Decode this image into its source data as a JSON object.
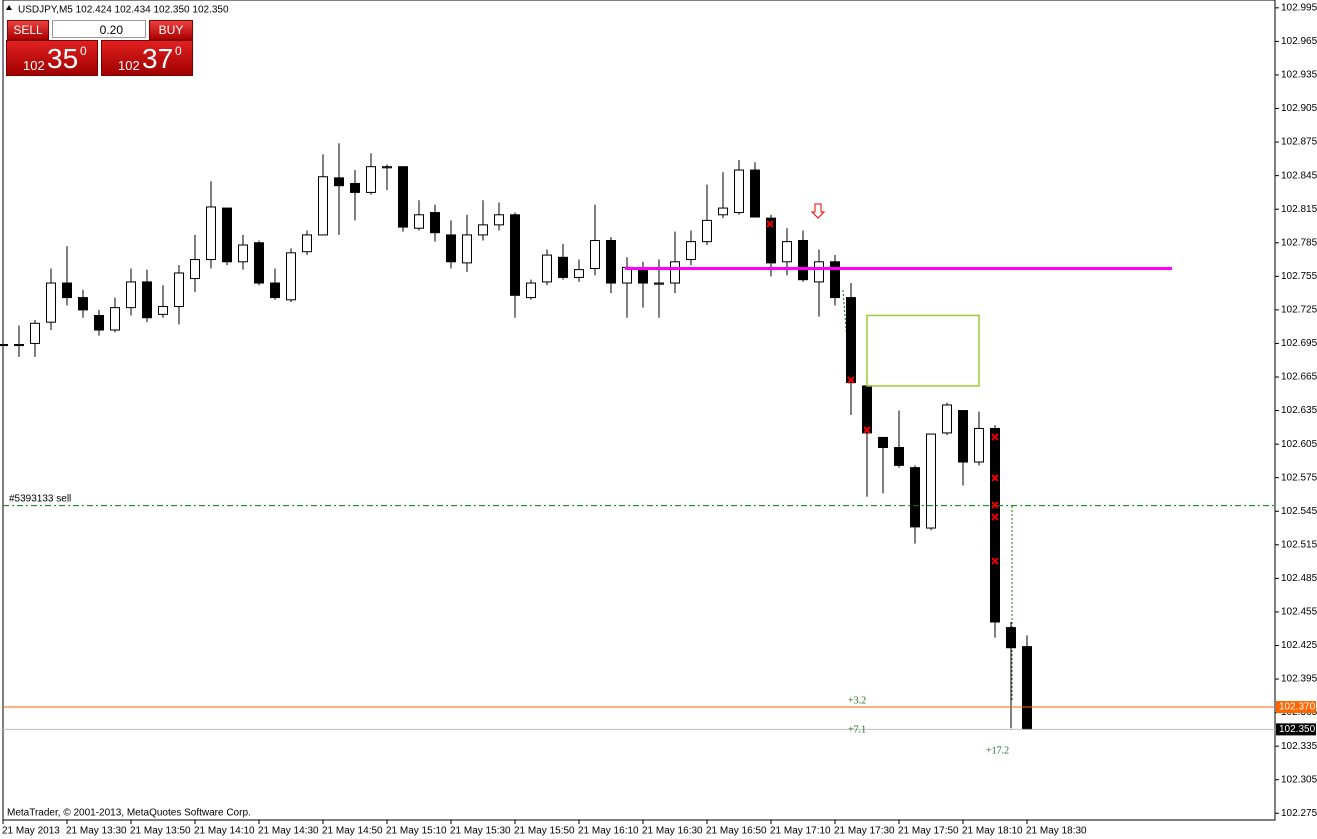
{
  "chart_data": {
    "type": "candlestick",
    "title": "USDJPY,M5  102.424 102.434 102.350 102.350",
    "footer": "MetaTrader, © 2001-2013, MetaQuotes Software Corp.",
    "categories": [
      "21 May 2013",
      null,
      null,
      null,
      "21 May 13:30",
      null,
      null,
      null,
      "21 May 13:50",
      null,
      null,
      null,
      "21 May 14:10",
      null,
      null,
      null,
      "21 May 14:30",
      null,
      null,
      null,
      "21 May 14:50",
      null,
      null,
      null,
      "21 May 15:10",
      null,
      null,
      null,
      "21 May 15:30",
      null,
      null,
      null,
      "21 May 15:50",
      null,
      null,
      null,
      "21 May 16:10",
      null,
      null,
      null,
      "21 May 16:30",
      null,
      null,
      null,
      "21 May 16:50",
      null,
      null,
      null,
      "21 May 17:10",
      null,
      null,
      null,
      "21 May 17:30",
      null,
      null,
      null,
      "21 May 17:50",
      null,
      null,
      null,
      "21 May 18:10",
      null,
      null,
      null,
      "21 May 18:30"
    ],
    "open": [
      102.694,
      102.694,
      102.695,
      102.714,
      102.749,
      102.736,
      102.72,
      102.707,
      102.727,
      102.75,
      102.721,
      102.728,
      102.753,
      102.77,
      102.816,
      102.768,
      102.785,
      102.749,
      102.734,
      102.777,
      102.792,
      102.843,
      102.838,
      102.83,
      102.852,
      102.853,
      102.798,
      102.812,
      102.792,
      102.767,
      102.792,
      102.801,
      102.81,
      102.736,
      102.75,
      102.772,
      102.754,
      102.762,
      102.787,
      102.749,
      102.761,
      102.748,
      102.749,
      102.77,
      102.786,
      102.81,
      102.812,
      102.85,
      102.807,
      102.768,
      102.787,
      102.75,
      102.768,
      102.736,
      102.657,
      102.611,
      102.602,
      102.584,
      102.53,
      102.615,
      102.635,
      102.589,
      102.619,
      102.441,
      102.424
    ],
    "high": [
      102.716,
      102.711,
      102.716,
      102.762,
      102.782,
      102.743,
      102.725,
      102.736,
      102.762,
      102.761,
      102.747,
      102.765,
      102.792,
      102.84,
      102.816,
      102.792,
      102.787,
      102.762,
      102.78,
      102.796,
      102.864,
      102.874,
      102.85,
      102.865,
      102.855,
      102.853,
      102.823,
      102.819,
      102.805,
      102.81,
      102.823,
      102.821,
      102.812,
      102.752,
      102.779,
      102.784,
      102.77,
      102.819,
      102.79,
      102.772,
      102.768,
      102.77,
      102.795,
      102.796,
      102.837,
      102.848,
      102.859,
      102.857,
      102.81,
      102.798,
      102.796,
      102.779,
      102.774,
      102.749,
      102.657,
      102.611,
      102.635,
      102.586,
      102.614,
      102.642,
      102.635,
      102.634,
      102.622,
      102.446,
      102.434
    ],
    "low": [
      102.685,
      102.683,
      102.683,
      102.707,
      102.729,
      102.718,
      102.702,
      102.705,
      102.72,
      102.714,
      102.718,
      102.712,
      102.741,
      102.762,
      102.765,
      102.761,
      102.747,
      102.734,
      102.732,
      102.774,
      102.792,
      102.792,
      102.805,
      102.828,
      102.832,
      102.795,
      102.796,
      102.786,
      102.762,
      102.759,
      102.787,
      102.796,
      102.718,
      102.734,
      102.747,
      102.752,
      102.75,
      102.756,
      102.74,
      102.718,
      102.727,
      102.718,
      102.74,
      102.765,
      102.783,
      102.807,
      102.81,
      102.808,
      102.755,
      102.756,
      102.75,
      102.719,
      102.729,
      102.631,
      102.558,
      102.561,
      102.584,
      102.516,
      102.528,
      102.613,
      102.568,
      102.586,
      102.432,
      102.351,
      102.35
    ],
    "close": [
      102.694,
      102.694,
      102.713,
      102.749,
      102.736,
      102.725,
      102.707,
      102.727,
      102.75,
      102.718,
      102.728,
      102.758,
      102.77,
      102.817,
      102.768,
      102.783,
      102.749,
      102.736,
      102.776,
      102.792,
      102.844,
      102.836,
      102.83,
      102.853,
      102.853,
      102.799,
      102.81,
      102.794,
      102.768,
      102.792,
      102.801,
      102.81,
      102.738,
      102.749,
      102.774,
      102.754,
      102.761,
      102.787,
      102.749,
      102.763,
      102.749,
      102.749,
      102.768,
      102.786,
      102.805,
      102.816,
      102.85,
      102.808,
      102.767,
      102.786,
      102.752,
      102.768,
      102.736,
      102.66,
      102.615,
      102.602,
      102.586,
      102.531,
      102.614,
      102.64,
      102.589,
      102.619,
      102.446,
      102.423,
      102.35
    ],
    "up_color": "#ffffff",
    "down_color": "#000000",
    "ylim": [
      102.269,
      103.002
    ],
    "yticks": [
      102.995,
      102.965,
      102.935,
      102.905,
      102.875,
      102.845,
      102.815,
      102.785,
      102.755,
      102.725,
      102.695,
      102.665,
      102.635,
      102.605,
      102.575,
      102.545,
      102.515,
      102.485,
      102.455,
      102.425,
      102.395,
      102.365,
      102.335,
      102.305,
      102.275
    ],
    "hlines": [
      {
        "value": 102.762,
        "color": "#ff00ff"
      },
      {
        "value": 102.55,
        "label": "#5393133 sell",
        "color": "#008000"
      },
      {
        "value": 102.37,
        "label": "102.370",
        "color": "#ff6600"
      },
      {
        "value": 102.35,
        "label": "102.350",
        "color": "#c0c0c0"
      }
    ],
    "zone": {
      "ylim": [
        102.657,
        102.72
      ],
      "color": "#99cc33"
    },
    "annotations": [
      "+3.2",
      "+7.1",
      "+17.2"
    ]
  },
  "trade_panel": {
    "sell": "SELL",
    "buy": "BUY",
    "lots": "0.20",
    "bid": {
      "big": "102",
      "pips": "35",
      "frac": "0"
    },
    "ask": {
      "big": "102",
      "pips": "37",
      "frac": "0"
    }
  }
}
